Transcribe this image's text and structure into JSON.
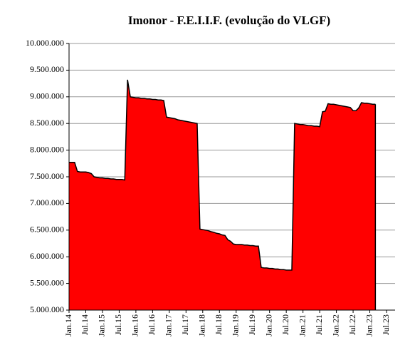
{
  "chart_data": {
    "type": "area",
    "title": "Imonor - F.E.I.I.F. (evolução do VLGF)",
    "categories": [
      "Jan.14",
      null,
      null,
      null,
      null,
      null,
      "Jul.14",
      null,
      null,
      null,
      null,
      null,
      "Jan.15",
      null,
      null,
      null,
      null,
      null,
      "Jul.15",
      null,
      null,
      null,
      null,
      null,
      "Jan.16",
      null,
      null,
      null,
      null,
      null,
      "Jul.16",
      null,
      null,
      null,
      null,
      null,
      "Jan.17",
      null,
      null,
      null,
      null,
      null,
      "Jul.17",
      null,
      null,
      null,
      null,
      null,
      "Jan.18",
      null,
      null,
      null,
      null,
      null,
      "Jul.18",
      null,
      null,
      null,
      null,
      null,
      "Jan.19",
      null,
      null,
      null,
      null,
      null,
      "Jul.19",
      null,
      null,
      null,
      null,
      null,
      "Jan.20",
      null,
      null,
      null,
      null,
      null,
      "Jul.20",
      null,
      null,
      null,
      null,
      null,
      "Jan.21",
      null,
      null,
      null,
      null,
      null,
      "Jul.21",
      null,
      null,
      null,
      null,
      null,
      "Jan.22",
      null,
      null,
      null,
      null,
      null,
      "Jul.22",
      null,
      null,
      null,
      null,
      null,
      "Jan.23",
      null,
      null,
      null,
      null,
      null,
      "Jul.23"
    ],
    "values": [
      7770000,
      7770000,
      7770000,
      7600000,
      7590000,
      7590000,
      7590000,
      7580000,
      7560000,
      7500000,
      7490000,
      7480000,
      7480000,
      7470000,
      7470000,
      7460000,
      7460000,
      7450000,
      7450000,
      7450000,
      7440000,
      9320000,
      9000000,
      8990000,
      8980000,
      8980000,
      8970000,
      8970000,
      8960000,
      8960000,
      8950000,
      8950000,
      8940000,
      8940000,
      8930000,
      8620000,
      8610000,
      8600000,
      8590000,
      8570000,
      8560000,
      8550000,
      8540000,
      8530000,
      8520000,
      8510000,
      8500000,
      6520000,
      6510000,
      6500000,
      6490000,
      6470000,
      6460000,
      6440000,
      6430000,
      6410000,
      6400000,
      6320000,
      6290000,
      6240000,
      6230000,
      6230000,
      6230000,
      6220000,
      6220000,
      6210000,
      6210000,
      6200000,
      6200000,
      5800000,
      5790000,
      5790000,
      5780000,
      5780000,
      5770000,
      5770000,
      5760000,
      5760000,
      5750000,
      5750000,
      5750000,
      8500000,
      8490000,
      8480000,
      8480000,
      8470000,
      8460000,
      8460000,
      8450000,
      8450000,
      8440000,
      8720000,
      8730000,
      8870000,
      8860000,
      8860000,
      8850000,
      8840000,
      8830000,
      8820000,
      8810000,
      8800000,
      8740000,
      8740000,
      8790000,
      8890000,
      8880000,
      8880000,
      8870000,
      8860000,
      8860000,
      null,
      null,
      null,
      null
    ],
    "color": "#ff0000",
    "line_color": "#000000",
    "ylim": [
      5000000,
      10000000
    ],
    "yticks": [
      {
        "value": 5000000,
        "label": "5.000.000"
      },
      {
        "value": 5500000,
        "label": "5.500.000"
      },
      {
        "value": 6000000,
        "label": "6.000.000"
      },
      {
        "value": 6500000,
        "label": "6.500.000"
      },
      {
        "value": 7000000,
        "label": "7.000.000"
      },
      {
        "value": 7500000,
        "label": "7.500.000"
      },
      {
        "value": 8000000,
        "label": "8.000.000"
      },
      {
        "value": 8500000,
        "label": "8.500.000"
      },
      {
        "value": 9000000,
        "label": "9.000.000"
      },
      {
        "value": 9500000,
        "label": "9.500.000"
      },
      {
        "value": 10000000,
        "label": "10.000.000"
      }
    ],
    "grid": true
  }
}
